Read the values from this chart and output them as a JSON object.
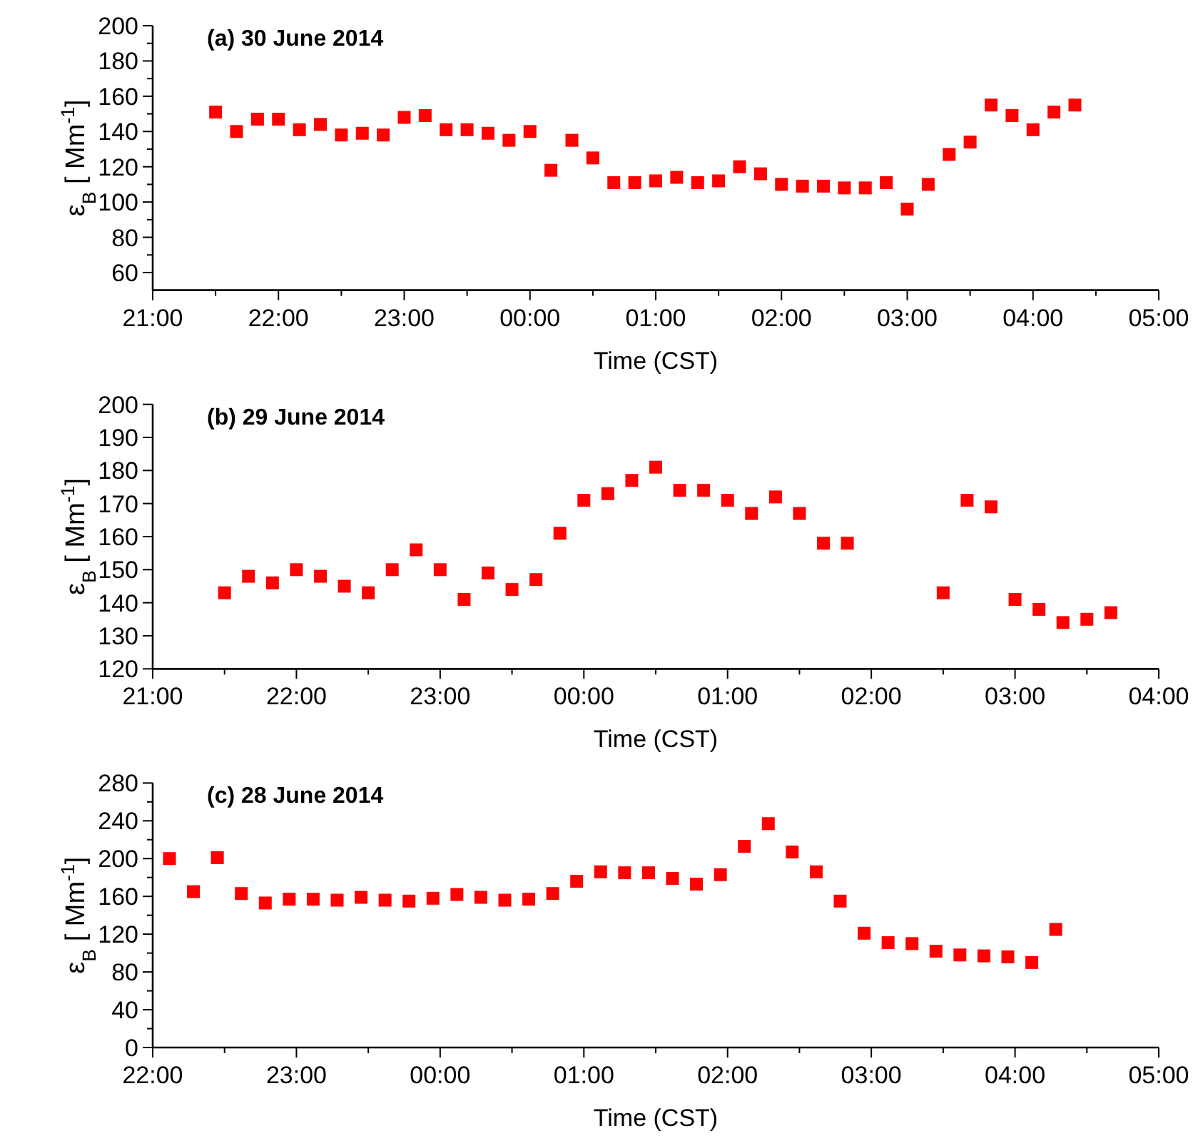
{
  "chart_data": [
    {
      "type": "scatter",
      "title": "(a) 30 June 2014",
      "xlabel": "Time (CST)",
      "ylabel": "ε$_{B}$ [ Mm$^{-1}$]",
      "marker": "square",
      "grid": false,
      "xlim": [
        "2014-06-30T21:00",
        "2014-07-01T05:00"
      ],
      "ylim": [
        50,
        200
      ],
      "xticks": [
        {
          "value": "2014-06-30T21:00",
          "label": "21:00"
        },
        {
          "value": "2014-06-30T21:30",
          "label": null
        },
        {
          "value": "2014-06-30T22:00",
          "label": "22:00"
        },
        {
          "value": "2014-06-30T22:30",
          "label": null
        },
        {
          "value": "2014-06-30T23:00",
          "label": "23:00"
        },
        {
          "value": "2014-06-30T23:30",
          "label": null
        },
        {
          "value": "2014-07-01T00:00",
          "label": "00:00"
        },
        {
          "value": "2014-07-01T00:30",
          "label": null
        },
        {
          "value": "2014-07-01T01:00",
          "label": "01:00"
        },
        {
          "value": "2014-07-01T01:30",
          "label": null
        },
        {
          "value": "2014-07-01T02:00",
          "label": "02:00"
        },
        {
          "value": "2014-07-01T02:30",
          "label": null
        },
        {
          "value": "2014-07-01T03:00",
          "label": "03:00"
        },
        {
          "value": "2014-07-01T03:30",
          "label": null
        },
        {
          "value": "2014-07-01T04:00",
          "label": "04:00"
        },
        {
          "value": "2014-07-01T04:30",
          "label": null
        },
        {
          "value": "2014-07-01T05:00",
          "label": "05:00"
        }
      ],
      "yticks": [
        60,
        {
          "value": 70,
          "label": null
        },
        80,
        {
          "value": 90,
          "label": null
        },
        100,
        {
          "value": 110,
          "label": null
        },
        120,
        {
          "value": 130,
          "label": null
        },
        140,
        {
          "value": 150,
          "label": null
        },
        160,
        {
          "value": 170,
          "label": null
        },
        180,
        {
          "value": 190,
          "label": null
        },
        200
      ],
      "series": [
        {
          "color": "#ff0000",
          "x": [
            "2014-06-30T21:30",
            "2014-06-30T21:40",
            "2014-06-30T21:50",
            "2014-06-30T22:00",
            "2014-06-30T22:10",
            "2014-06-30T22:20",
            "2014-06-30T22:30",
            "2014-06-30T22:40",
            "2014-06-30T22:50",
            "2014-06-30T23:00",
            "2014-06-30T23:10",
            "2014-06-30T23:20",
            "2014-06-30T23:30",
            "2014-06-30T23:40",
            "2014-06-30T23:50",
            "2014-07-01T00:00",
            "2014-07-01T00:10",
            "2014-07-01T00:20",
            "2014-07-01T00:30",
            "2014-07-01T00:40",
            "2014-07-01T00:50",
            "2014-07-01T01:00",
            "2014-07-01T01:10",
            "2014-07-01T01:20",
            "2014-07-01T01:30",
            "2014-07-01T01:40",
            "2014-07-01T01:50",
            "2014-07-01T02:00",
            "2014-07-01T02:10",
            "2014-07-01T02:20",
            "2014-07-01T02:30",
            "2014-07-01T02:40",
            "2014-07-01T02:50",
            "2014-07-01T03:00",
            "2014-07-01T03:10",
            "2014-07-01T03:20",
            "2014-07-01T03:30",
            "2014-07-01T03:40",
            "2014-07-01T03:50",
            "2014-07-01T04:00",
            "2014-07-01T04:10",
            "2014-07-01T04:20"
          ],
          "values": [
            151,
            140,
            147,
            147,
            141,
            144,
            138,
            139,
            138,
            148,
            149,
            141,
            141,
            139,
            135,
            140,
            118,
            135,
            125,
            111,
            111,
            112,
            114,
            111,
            112,
            120,
            116,
            110,
            109,
            109,
            108,
            108,
            111,
            96,
            110,
            127,
            134,
            155,
            149,
            141,
            151,
            155
          ]
        }
      ]
    },
    {
      "type": "scatter",
      "title": "(b) 29 June 2014",
      "xlabel": "Time (CST)",
      "ylabel": "ε$_{B}$ [ Mm$^{-1}$]",
      "marker": "square",
      "grid": false,
      "xlim": [
        "2014-06-29T21:00",
        "2014-06-30T04:00"
      ],
      "ylim": [
        120,
        200
      ],
      "xticks": [
        {
          "value": "2014-06-29T21:00",
          "label": "21:00"
        },
        {
          "value": "2014-06-29T21:30",
          "label": null
        },
        {
          "value": "2014-06-29T22:00",
          "label": "22:00"
        },
        {
          "value": "2014-06-29T22:30",
          "label": null
        },
        {
          "value": "2014-06-29T23:00",
          "label": "23:00"
        },
        {
          "value": "2014-06-29T23:30",
          "label": null
        },
        {
          "value": "2014-06-30T00:00",
          "label": "00:00"
        },
        {
          "value": "2014-06-30T00:30",
          "label": null
        },
        {
          "value": "2014-06-30T01:00",
          "label": "01:00"
        },
        {
          "value": "2014-06-30T01:30",
          "label": null
        },
        {
          "value": "2014-06-30T02:00",
          "label": "02:00"
        },
        {
          "value": "2014-06-30T02:30",
          "label": null
        },
        {
          "value": "2014-06-30T03:00",
          "label": "03:00"
        },
        {
          "value": "2014-06-30T03:30",
          "label": null
        },
        {
          "value": "2014-06-30T04:00",
          "label": "04:00"
        }
      ],
      "yticks": [
        120,
        130,
        140,
        150,
        160,
        170,
        180,
        190,
        200
      ],
      "series": [
        {
          "color": "#ff0000",
          "x": [
            "2014-06-29T21:30",
            "2014-06-29T21:40",
            "2014-06-29T21:50",
            "2014-06-29T22:00",
            "2014-06-29T22:10",
            "2014-06-29T22:20",
            "2014-06-29T22:30",
            "2014-06-29T22:40",
            "2014-06-29T22:50",
            "2014-06-29T23:00",
            "2014-06-29T23:10",
            "2014-06-29T23:20",
            "2014-06-29T23:30",
            "2014-06-29T23:40",
            "2014-06-29T23:50",
            "2014-06-30T00:00",
            "2014-06-30T00:10",
            "2014-06-30T00:20",
            "2014-06-30T00:30",
            "2014-06-30T00:40",
            "2014-06-30T00:50",
            "2014-06-30T01:00",
            "2014-06-30T01:10",
            "2014-06-30T01:20",
            "2014-06-30T01:30",
            "2014-06-30T01:40",
            "2014-06-30T01:50",
            "2014-06-30T02:30",
            "2014-06-30T02:40",
            "2014-06-30T02:50",
            "2014-06-30T03:00",
            "2014-06-30T03:10",
            "2014-06-30T03:20",
            "2014-06-30T03:30",
            "2014-06-30T03:40"
          ],
          "values": [
            143,
            148,
            146,
            150,
            148,
            145,
            143,
            150,
            156,
            150,
            141,
            149,
            144,
            147,
            161,
            171,
            173,
            177,
            181,
            174,
            174,
            171,
            167,
            172,
            167,
            158,
            158,
            143,
            171,
            169,
            141,
            138,
            134,
            135,
            137
          ]
        }
      ]
    },
    {
      "type": "scatter",
      "title": "(c) 28 June 2014",
      "xlabel": "Time (CST)",
      "ylabel": "ε$_{B}$ [ Mm$^{-1}$]",
      "marker": "square",
      "grid": false,
      "xlim": [
        "2014-06-28T22:00",
        "2014-06-29T05:00"
      ],
      "ylim": [
        0,
        280
      ],
      "xticks": [
        {
          "value": "2014-06-28T22:00",
          "label": "22:00"
        },
        {
          "value": "2014-06-28T22:30",
          "label": null
        },
        {
          "value": "2014-06-28T23:00",
          "label": "23:00"
        },
        {
          "value": "2014-06-28T23:30",
          "label": null
        },
        {
          "value": "2014-06-29T00:00",
          "label": "00:00"
        },
        {
          "value": "2014-06-29T00:30",
          "label": null
        },
        {
          "value": "2014-06-29T01:00",
          "label": "01:00"
        },
        {
          "value": "2014-06-29T01:30",
          "label": null
        },
        {
          "value": "2014-06-29T02:00",
          "label": "02:00"
        },
        {
          "value": "2014-06-29T02:30",
          "label": null
        },
        {
          "value": "2014-06-29T03:00",
          "label": "03:00"
        },
        {
          "value": "2014-06-29T03:30",
          "label": null
        },
        {
          "value": "2014-06-29T04:00",
          "label": "04:00"
        },
        {
          "value": "2014-06-29T04:30",
          "label": null
        },
        {
          "value": "2014-06-29T05:00",
          "label": "05:00"
        }
      ],
      "yticks": [
        0,
        {
          "value": 20,
          "label": null
        },
        40,
        {
          "value": 60,
          "label": null
        },
        80,
        {
          "value": 100,
          "label": null
        },
        120,
        {
          "value": 140,
          "label": null
        },
        160,
        {
          "value": 180,
          "label": null
        },
        200,
        {
          "value": 220,
          "label": null
        },
        240,
        {
          "value": 260,
          "label": null
        },
        280
      ],
      "series": [
        {
          "color": "#ff0000",
          "x": [
            "2014-06-28T22:07",
            "2014-06-28T22:17",
            "2014-06-28T22:27",
            "2014-06-28T22:37",
            "2014-06-28T22:47",
            "2014-06-28T22:57",
            "2014-06-28T23:07",
            "2014-06-28T23:17",
            "2014-06-28T23:27",
            "2014-06-28T23:37",
            "2014-06-28T23:47",
            "2014-06-28T23:57",
            "2014-06-29T00:07",
            "2014-06-29T00:17",
            "2014-06-29T00:27",
            "2014-06-29T00:37",
            "2014-06-29T00:47",
            "2014-06-29T00:57",
            "2014-06-29T01:07",
            "2014-06-29T01:17",
            "2014-06-29T01:27",
            "2014-06-29T01:37",
            "2014-06-29T01:47",
            "2014-06-29T01:57",
            "2014-06-29T02:07",
            "2014-06-29T02:17",
            "2014-06-29T02:27",
            "2014-06-29T02:37",
            "2014-06-29T02:47",
            "2014-06-29T02:57",
            "2014-06-29T03:07",
            "2014-06-29T03:17",
            "2014-06-29T03:27",
            "2014-06-29T03:37",
            "2014-06-29T03:47",
            "2014-06-29T03:57",
            "2014-06-29T04:07",
            "2014-06-29T04:17"
          ],
          "values": [
            200,
            165,
            201,
            163,
            153,
            157,
            157,
            156,
            159,
            156,
            155,
            158,
            162,
            159,
            156,
            157,
            163,
            176,
            186,
            185,
            185,
            179,
            173,
            183,
            213,
            237,
            207,
            186,
            155,
            121,
            111,
            110,
            102,
            98,
            97,
            96,
            90,
            125
          ]
        }
      ]
    }
  ]
}
